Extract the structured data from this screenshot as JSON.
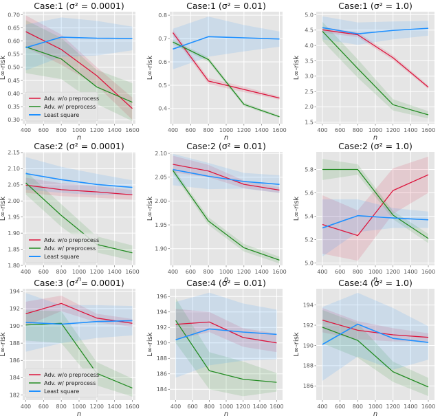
{
  "figure": {
    "colors": {
      "panel_bg": "#e5e5e5",
      "grid": "#ffffff",
      "adv_wo": "#dc143c",
      "adv_w": "#228b22",
      "ls": "#1e90ff"
    }
  },
  "chart_data": [
    {
      "type": "line",
      "title": "Case:1  (σ² = 0.0001)",
      "case": "Case:1",
      "sigma2": "0.0001",
      "xlabel": "n",
      "ylabel": "L∞-risk",
      "x": [
        400,
        800,
        1200,
        1600
      ],
      "xticks": [
        400,
        600,
        800,
        1000,
        1200,
        1400,
        1600
      ],
      "xlim": [
        365,
        1635
      ],
      "ylim": [
        0.285,
        0.712
      ],
      "yticks": [
        0.3,
        0.35,
        0.4,
        0.45,
        0.5,
        0.55,
        0.6,
        0.65,
        0.7
      ],
      "ytick_labels": [
        "0.30",
        "0.35",
        "0.40",
        "0.45",
        "0.50",
        "0.55",
        "0.60",
        "0.65",
        "0.70"
      ],
      "show_ylabel": true,
      "legend": "lower-left",
      "series": [
        {
          "name": "Adv. w/o preprocess",
          "key": "adv_wo",
          "values": [
            0.636,
            0.568,
            0.468,
            0.343
          ],
          "lower": [
            0.575,
            0.51,
            0.43,
            0.3
          ],
          "upper": [
            0.698,
            0.625,
            0.5,
            0.385
          ]
        },
        {
          "name": "Adv. w/ preprocess",
          "key": "adv_w",
          "values": [
            0.578,
            0.532,
            0.425,
            0.367
          ],
          "lower": [
            0.478,
            0.455,
            0.36,
            0.295
          ],
          "upper": [
            0.68,
            0.612,
            0.49,
            0.44
          ]
        },
        {
          "name": "Least square",
          "key": "ls",
          "values": [
            0.575,
            0.615,
            0.611,
            0.61
          ],
          "lower": [
            0.488,
            0.54,
            0.545,
            0.565
          ],
          "upper": [
            0.663,
            0.69,
            0.677,
            0.655
          ]
        }
      ]
    },
    {
      "type": "line",
      "title": "Case:1  (σ² = 0.01)",
      "case": "Case:1",
      "sigma2": "0.01",
      "xlabel": "n",
      "ylabel": "L∞-risk",
      "x": [
        400,
        800,
        1200,
        1600
      ],
      "xticks": [
        400,
        600,
        800,
        1000,
        1200,
        1400,
        1600
      ],
      "xlim": [
        365,
        1635
      ],
      "ylim": [
        0.335,
        0.815
      ],
      "yticks": [
        0.4,
        0.5,
        0.6,
        0.7,
        0.8
      ],
      "ytick_labels": [
        "0.4",
        "0.5",
        "0.6",
        "0.7",
        "0.8"
      ],
      "show_ylabel": true,
      "legend": "none",
      "series": [
        {
          "name": "Adv. w/o preprocess",
          "key": "adv_wo",
          "values": [
            0.725,
            0.518,
            0.482,
            0.445
          ],
          "lower": [
            0.712,
            0.505,
            0.47,
            0.438
          ],
          "upper": [
            0.738,
            0.531,
            0.494,
            0.452
          ]
        },
        {
          "name": "Adv. w/ preprocess",
          "key": "adv_w",
          "values": [
            0.685,
            0.61,
            0.418,
            0.365
          ],
          "lower": [
            0.675,
            0.6,
            0.41,
            0.36
          ],
          "upper": [
            0.695,
            0.62,
            0.426,
            0.37
          ]
        },
        {
          "name": "Least square",
          "key": "ls",
          "values": [
            0.655,
            0.708,
            0.703,
            0.698
          ],
          "lower": [
            0.568,
            0.622,
            0.645,
            0.665
          ],
          "upper": [
            0.742,
            0.794,
            0.758,
            0.73
          ]
        }
      ]
    },
    {
      "type": "line",
      "title": "Case:1  (σ² = 1.0)",
      "case": "Case:1",
      "sigma2": "1.0",
      "xlabel": "n",
      "ylabel": "L∞-risk",
      "x": [
        400,
        800,
        1200,
        1600
      ],
      "xticks": [
        400,
        600,
        800,
        1000,
        1200,
        1400,
        1600
      ],
      "xlim": [
        330,
        1670
      ],
      "ylim": [
        1.45,
        5.1
      ],
      "yticks": [
        1.5,
        2.0,
        2.5,
        3.0,
        3.5,
        4.0,
        4.5,
        5.0
      ],
      "ytick_labels": [
        "1.5",
        "2.0",
        "2.5",
        "3.0",
        "3.5",
        "4.0",
        "4.5",
        "5.0"
      ],
      "show_ylabel": true,
      "legend": "none",
      "series": [
        {
          "name": "Adv. w/o preprocess",
          "key": "adv_wo",
          "values": [
            4.51,
            4.35,
            3.6,
            2.64
          ],
          "lower": [
            4.42,
            4.27,
            3.52,
            2.58
          ],
          "upper": [
            4.6,
            4.43,
            3.68,
            2.7
          ]
        },
        {
          "name": "Adv. w/ preprocess",
          "key": "adv_w",
          "values": [
            4.46,
            3.25,
            2.07,
            1.74
          ],
          "lower": [
            4.15,
            2.95,
            1.88,
            1.62
          ],
          "upper": [
            4.77,
            3.55,
            2.25,
            1.86
          ]
        },
        {
          "name": "Least square",
          "key": "ls",
          "values": [
            4.58,
            4.38,
            4.49,
            4.56
          ],
          "lower": [
            4.2,
            4.02,
            4.2,
            4.32
          ],
          "upper": [
            4.95,
            4.75,
            4.78,
            4.8
          ]
        }
      ]
    },
    {
      "type": "line",
      "title": "Case:2  (σ² = 0.0001)",
      "case": "Case:2",
      "sigma2": "0.0001",
      "xlabel": "n",
      "ylabel": "L∞-risk",
      "x": [
        400,
        800,
        1200,
        1600
      ],
      "xticks": [
        400,
        600,
        800,
        1000,
        1200,
        1400,
        1600
      ],
      "xlim": [
        365,
        1635
      ],
      "ylim": [
        1.8,
        2.152
      ],
      "yticks": [
        1.8,
        1.85,
        1.9,
        1.95,
        2.0,
        2.05,
        2.1,
        2.15
      ],
      "ytick_labels": [
        "1.80",
        "1.85",
        "1.90",
        "1.95",
        "2.00",
        "2.05",
        "2.10",
        "2.15"
      ],
      "show_ylabel": true,
      "legend": "lower-left",
      "series": [
        {
          "name": "Adv. w/o preprocess",
          "key": "adv_wo",
          "values": [
            2.049,
            2.035,
            2.028,
            2.019
          ],
          "lower": [
            2.025,
            2.015,
            2.01,
            2.004
          ],
          "upper": [
            2.072,
            2.055,
            2.046,
            2.034
          ]
        },
        {
          "name": "Adv. w/ preprocess",
          "key": "adv_w",
          "values": [
            2.056,
            1.955,
            1.865,
            1.839
          ],
          "lower": [
            2.02,
            1.92,
            1.84,
            1.815
          ],
          "upper": [
            2.092,
            1.99,
            1.89,
            1.862
          ]
        },
        {
          "name": "Least square",
          "key": "ls",
          "values": [
            2.085,
            2.066,
            2.051,
            2.042
          ],
          "lower": [
            2.035,
            2.025,
            2.018,
            2.02
          ],
          "upper": [
            2.136,
            2.106,
            2.084,
            2.064
          ]
        }
      ]
    },
    {
      "type": "line",
      "title": "Case:2  (σ² = 0.01)",
      "case": "Case:2",
      "sigma2": "0.01",
      "xlabel": "n",
      "ylabel": "L∞-risk",
      "x": [
        400,
        800,
        1200,
        1600
      ],
      "xticks": [
        400,
        600,
        800,
        1000,
        1200,
        1400,
        1600
      ],
      "xlim": [
        365,
        1635
      ],
      "ylim": [
        1.865,
        2.103
      ],
      "yticks": [
        1.9,
        1.95,
        2.0,
        2.05,
        2.1
      ],
      "ytick_labels": [
        "1.90",
        "1.95",
        "2.00",
        "2.05",
        "2.10"
      ],
      "show_ylabel": true,
      "legend": "none",
      "series": [
        {
          "name": "Adv. w/o preprocess",
          "key": "adv_wo",
          "values": [
            2.077,
            2.063,
            2.035,
            2.023
          ],
          "lower": [
            2.06,
            2.05,
            2.027,
            2.017
          ],
          "upper": [
            2.095,
            2.076,
            2.043,
            2.029
          ]
        },
        {
          "name": "Adv. w/ preprocess",
          "key": "adv_w",
          "values": [
            2.064,
            1.958,
            1.902,
            1.876
          ],
          "lower": [
            2.058,
            1.95,
            1.894,
            1.869
          ],
          "upper": [
            2.07,
            1.966,
            1.91,
            1.883
          ]
        },
        {
          "name": "Least square",
          "key": "ls",
          "values": [
            2.066,
            2.052,
            2.041,
            2.035
          ],
          "lower": [
            2.033,
            2.025,
            2.026,
            2.017
          ],
          "upper": [
            2.099,
            2.08,
            2.059,
            2.054
          ]
        }
      ]
    },
    {
      "type": "line",
      "title": "Case:2  (σ² = 1.0)",
      "case": "Case:2",
      "sigma2": "1.0",
      "xlabel": "n",
      "ylabel": "L∞-risk",
      "x": [
        400,
        800,
        1200,
        1600
      ],
      "xticks": [
        400,
        600,
        800,
        1000,
        1200,
        1400,
        1600
      ],
      "xlim": [
        330,
        1670
      ],
      "ylim": [
        4.98,
        5.95
      ],
      "yticks": [
        5.0,
        5.2,
        5.4,
        5.6,
        5.8
      ],
      "ytick_labels": [
        "5.0",
        "5.2",
        "5.4",
        "5.6",
        "5.8"
      ],
      "show_ylabel": true,
      "legend": "none",
      "series": [
        {
          "name": "Adv. w/o preprocess",
          "key": "adv_wo",
          "values": [
            5.33,
            5.235,
            5.62,
            5.755
          ],
          "lower": [
            5.08,
            5.02,
            5.42,
            5.6
          ],
          "upper": [
            5.58,
            5.45,
            5.81,
            5.91
          ]
        },
        {
          "name": "Adv. w/ preprocess",
          "key": "adv_w",
          "values": [
            5.8,
            5.8,
            5.41,
            5.21
          ],
          "lower": [
            5.71,
            5.755,
            5.375,
            5.17
          ],
          "upper": [
            5.89,
            5.845,
            5.445,
            5.25
          ]
        },
        {
          "name": "Least square",
          "key": "ls",
          "values": [
            5.3,
            5.405,
            5.385,
            5.37
          ],
          "lower": [
            5.055,
            5.265,
            5.3,
            5.3
          ],
          "upper": [
            5.545,
            5.545,
            5.47,
            5.44
          ]
        }
      ]
    },
    {
      "type": "line",
      "title": "Case:3  (σ² = 0.0001)",
      "case": "Case:3",
      "sigma2": "0.0001",
      "xlabel": "n",
      "ylabel": "L∞-risk",
      "x": [
        400,
        800,
        1200,
        1600
      ],
      "xticks": [
        400,
        600,
        800,
        1000,
        1200,
        1400,
        1600
      ],
      "xlim": [
        365,
        1635
      ],
      "ylim": [
        181.4,
        194.3
      ],
      "yticks": [
        182,
        184,
        186,
        188,
        190,
        192,
        194
      ],
      "ytick_labels": [
        "182",
        "184",
        "186",
        "188",
        "190",
        "192",
        "194"
      ],
      "show_ylabel": true,
      "legend": "lower-left",
      "series": [
        {
          "name": "Adv. w/o preprocess",
          "key": "adv_wo",
          "values": [
            191.4,
            192.6,
            190.9,
            190.3
          ],
          "lower": [
            190.0,
            191.7,
            190.4,
            189.9
          ],
          "upper": [
            192.8,
            193.5,
            191.4,
            190.8
          ]
        },
        {
          "name": "Adv. w/ preprocess",
          "key": "adv_w",
          "values": [
            190.1,
            190.3,
            184.5,
            182.8
          ],
          "lower": [
            188.3,
            188.0,
            183.1,
            181.8
          ],
          "upper": [
            191.8,
            191.7,
            185.8,
            183.9
          ]
        },
        {
          "name": "Least square",
          "key": "ls",
          "values": [
            190.4,
            190.2,
            190.5,
            190.6
          ],
          "lower": [
            187.0,
            188.0,
            188.6,
            188.9
          ],
          "upper": [
            193.8,
            192.4,
            192.4,
            192.3
          ]
        }
      ]
    },
    {
      "type": "line",
      "title": "Case:4  (σ² = 0.01)",
      "case": "Case:4",
      "sigma2": "0.01",
      "xlabel": "n",
      "ylabel": "L∞-risk",
      "x": [
        400,
        800,
        1200,
        1600
      ],
      "xticks": [
        400,
        600,
        800,
        1000,
        1200,
        1400,
        1600
      ],
      "xlim": [
        330,
        1670
      ],
      "ylim": [
        182.6,
        197.0
      ],
      "yticks": [
        184,
        186,
        188,
        190,
        192,
        194,
        196
      ],
      "ytick_labels": [
        "184",
        "186",
        "188",
        "190",
        "192",
        "194",
        "196"
      ],
      "show_ylabel": true,
      "legend": "none",
      "series": [
        {
          "name": "Adv. w/o preprocess",
          "key": "adv_wo",
          "values": [
            192.4,
            192.7,
            190.7,
            190.0
          ],
          "lower": [
            190.4,
            191.4,
            189.5,
            188.8
          ],
          "upper": [
            194.4,
            194.0,
            191.9,
            191.2
          ]
        },
        {
          "name": "Adv. w/ preprocess",
          "key": "adv_w",
          "values": [
            192.9,
            186.4,
            185.3,
            184.9
          ],
          "lower": [
            190.0,
            184.0,
            183.1,
            183.7
          ],
          "upper": [
            195.8,
            188.8,
            187.6,
            186.1
          ]
        },
        {
          "name": "Least square",
          "key": "ls",
          "values": [
            190.4,
            191.8,
            191.4,
            191.1
          ],
          "lower": [
            185.5,
            187.1,
            187.7,
            187.9
          ],
          "upper": [
            195.3,
            196.5,
            195.1,
            194.3
          ]
        }
      ]
    },
    {
      "type": "line",
      "title": "Case:4  (σ² = 1.0)",
      "case": "Case:4",
      "sigma2": "1.0",
      "xlabel": "n",
      "ylabel": "L∞-risk",
      "x": [
        400,
        800,
        1200,
        1600
      ],
      "xticks": [
        400,
        600,
        800,
        1000,
        1200,
        1400,
        1600
      ],
      "xlim": [
        330,
        1670
      ],
      "ylim": [
        184.6,
        195.6
      ],
      "yticks": [
        186,
        188,
        190,
        192,
        194
      ],
      "ytick_labels": [
        "186",
        "188",
        "190",
        "192",
        "194"
      ],
      "show_ylabel": true,
      "legend": "none",
      "series": [
        {
          "name": "Adv. w/o preprocess",
          "key": "adv_wo",
          "values": [
            192.5,
            191.5,
            191.05,
            190.8
          ],
          "lower": [
            191.3,
            190.6,
            190.4,
            190.4
          ],
          "upper": [
            193.7,
            192.4,
            191.7,
            191.2
          ]
        },
        {
          "name": "Adv. w/ preprocess",
          "key": "adv_w",
          "values": [
            191.8,
            190.5,
            187.4,
            185.9
          ],
          "lower": [
            190.2,
            188.8,
            186.4,
            185.0
          ],
          "upper": [
            193.5,
            192.2,
            188.4,
            186.8
          ]
        },
        {
          "name": "Least square",
          "key": "ls",
          "values": [
            190.1,
            192.1,
            190.7,
            190.3
          ],
          "lower": [
            186.5,
            188.9,
            187.6,
            188.6
          ],
          "upper": [
            193.8,
            195.2,
            193.7,
            191.9
          ]
        }
      ]
    }
  ]
}
